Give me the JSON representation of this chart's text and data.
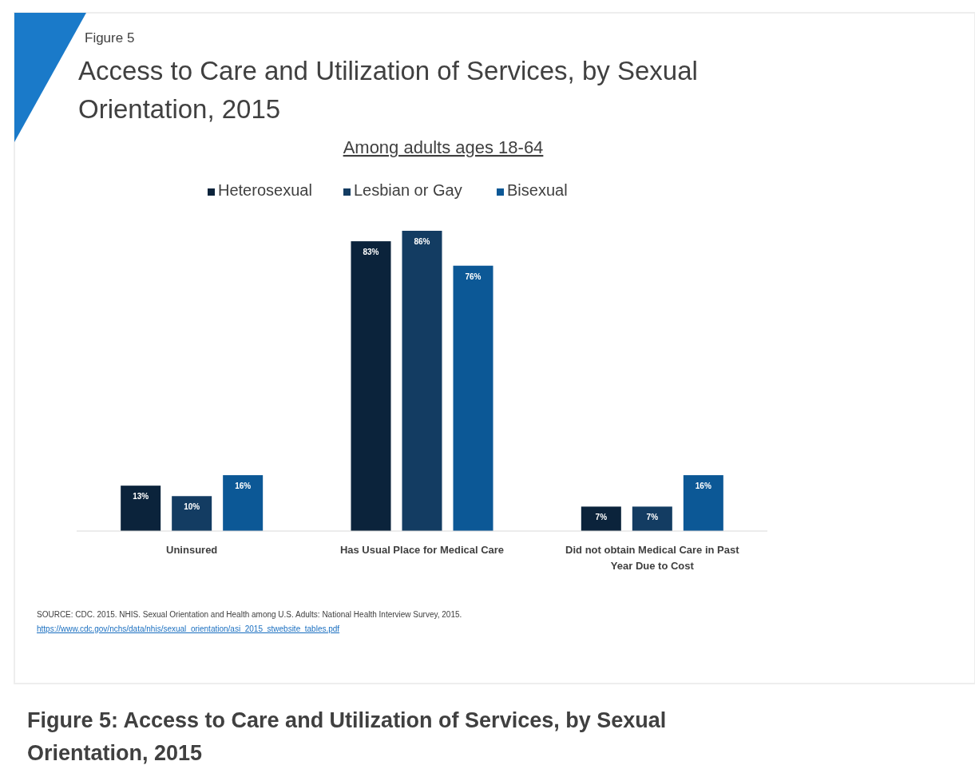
{
  "chart_data": {
    "type": "bar",
    "title": "Access to Care and Utilization of Services, by Sexual Orientation, 2015",
    "subtitle": "Among adults ages 18-64",
    "categories": [
      "Uninsured",
      "Has Usual Place for Medical Care",
      "Did not obtain Medical Care in Past Year Due to Cost"
    ],
    "series": [
      {
        "name": "Heterosexual",
        "color": "#0b233b",
        "values": [
          13,
          83,
          7
        ],
        "value_labels": [
          "13%",
          "83%",
          "7%"
        ]
      },
      {
        "name": "Lesbian or Gay",
        "color": "#133c62",
        "values": [
          10,
          86,
          7
        ],
        "value_labels": [
          "10%",
          "86%",
          "7%"
        ]
      },
      {
        "name": "Bisexual",
        "color": "#0c5896",
        "values": [
          16,
          76,
          16
        ],
        "value_labels": [
          "16%",
          "76%",
          "16%"
        ]
      }
    ],
    "legend": "top",
    "annotations": [
      "Figure 5",
      "SOURCE:  CDC. 2015. NHIS. Sexual Orientation and Health among U.S. Adults: National Health Interview Survey, 2015.",
      "https://www.cdc.gov/nchs/data/nhis/sexual_orientation/asi_2015_stwebsite_tables.pdf",
      "Figure 5: Access to Care and Utilization of Services, by Sexual Orientation, 2015"
    ]
  }
}
